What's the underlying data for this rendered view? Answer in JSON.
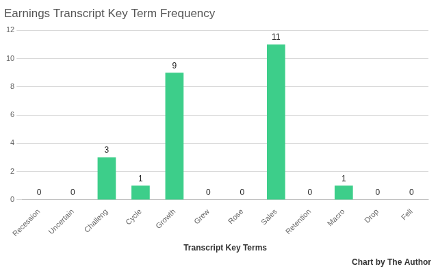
{
  "chart_data": {
    "type": "bar",
    "title": "Earnings Transcript Key Term Frequency",
    "xlabel": "Transcript Key Terms",
    "annotations": [
      {
        "text": "Chart by The Author"
      }
    ],
    "categories": [
      "Recession",
      "Uncertain",
      "Challeng",
      "Cycle",
      "Growth",
      "Grew",
      "Rose",
      "Sales",
      "Retention",
      "Macro",
      "Drop",
      "Fell"
    ],
    "values": [
      0,
      0,
      3,
      1,
      9,
      0,
      0,
      11,
      0,
      1,
      0,
      0
    ],
    "color": "#3dce8a",
    "ylim": [
      0,
      12
    ],
    "yticks": [
      0,
      2,
      4,
      6,
      8,
      10,
      12
    ],
    "grid": true,
    "data_labels": true
  }
}
